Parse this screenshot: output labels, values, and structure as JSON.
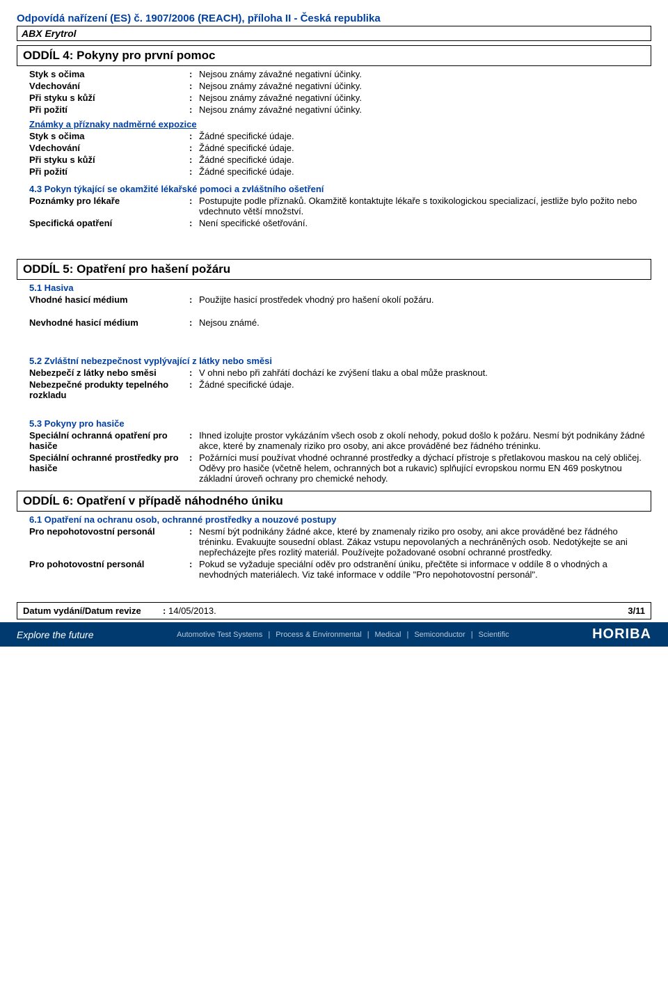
{
  "header": {
    "regulation": "Odpovídá nařízení (ES) č. 1907/2006 (REACH), příloha II - Česká republika",
    "product": "ABX Erytrol"
  },
  "section4": {
    "title": "ODDÍL 4: Pokyny pro první pomoc",
    "rows1": [
      {
        "label": "Styk s očima",
        "value": "Nejsou známy závažné negativní účinky."
      },
      {
        "label": "Vdechování",
        "value": "Nejsou známy závažné negativní účinky."
      },
      {
        "label": "Při styku s kůží",
        "value": "Nejsou známy závažné negativní účinky."
      },
      {
        "label": "Při požití",
        "value": "Nejsou známy závažné negativní účinky."
      }
    ],
    "exposure_heading": "Známky a příznaky nadměrné expozice",
    "rows2": [
      {
        "label": "Styk s očima",
        "value": "Žádné specifické údaje."
      },
      {
        "label": "Vdechování",
        "value": "Žádné specifické údaje."
      },
      {
        "label": "Při styku s kůží",
        "value": "Žádné specifické údaje."
      },
      {
        "label": "Při požití",
        "value": "Žádné specifické údaje."
      }
    ],
    "sub43": "4.3 Pokyn týkající se okamžité lékařské pomoci a zvláštního ošetření",
    "rows3": [
      {
        "label": "Poznámky pro lékaře",
        "value": "Postupujte podle příznaků.  Okamžitě kontaktujte lékaře s toxikologickou specializací, jestliže bylo požito nebo vdechnuto větší množství."
      },
      {
        "label": "Specifická opatření",
        "value": "Není specifické ošetřování."
      }
    ]
  },
  "section5": {
    "title": "ODDÍL 5: Opatření pro hašení požáru",
    "sub51": "5.1 Hasiva",
    "rows1": [
      {
        "label": "Vhodné hasicí médium",
        "value": "Použijte hasicí prostředek vhodný pro hašení okolí požáru."
      }
    ],
    "rows1b": [
      {
        "label": "Nevhodné hasicí médium",
        "value": "Nejsou známé."
      }
    ],
    "sub52": "5.2 Zvláštní nebezpečnost vyplývající z látky nebo směsi",
    "rows2": [
      {
        "label": "Nebezpečí z látky nebo směsi",
        "value": "V ohni nebo při zahřátí dochází ke zvýšení tlaku a obal může prasknout."
      },
      {
        "label": "Nebezpečné produkty tepelného rozkladu",
        "value": "Žádné specifické údaje."
      }
    ],
    "sub53": "5.3 Pokyny pro hasiče",
    "rows3": [
      {
        "label": "Speciální ochranná opatření pro hasiče",
        "value": "Ihned izolujte prostor vykázáním všech osob z okolí nehody, pokud došlo k požáru.  Nesmí být podnikány žádné akce, které by znamenaly riziko pro osoby, ani akce prováděné bez řádného tréninku."
      },
      {
        "label": "Speciální ochranné prostředky pro hasiče",
        "value": "Požárníci musí používat vhodné ochranné prostředky a dýchací přístroje s přetlakovou maskou na celý obličej.  Oděvy pro hasiče (včetně helem, ochranných bot a rukavic) splňující evropskou normu EN 469 poskytnou základní úroveň ochrany pro chemické nehody."
      }
    ]
  },
  "section6": {
    "title": "ODDÍL 6: Opatření v případě náhodného úniku",
    "sub61": "6.1 Opatření na ochranu osob, ochranné prostředky a nouzové postupy",
    "rows1": [
      {
        "label": "Pro nepohotovostní personál",
        "value": "Nesmí být podnikány žádné akce, které by znamenaly riziko pro osoby, ani akce prováděné bez řádného tréninku.  Evakuujte sousední oblast.  Zákaz vstupu nepovolaných a nechráněných osob.  Nedotýkejte se ani nepřecházejte přes rozlitý materiál.  Používejte požadované osobní ochranné prostředky."
      },
      {
        "label": "Pro pohotovostní personál",
        "value": "Pokud se vyžaduje speciální oděv pro odstranění úniku, přečtěte si informace v oddíle 8 o vhodných a nevhodných materiálech.  Viz také informace v oddíle \"Pro nepohotovostní personál\"."
      }
    ]
  },
  "footer": {
    "label": "Datum vydání/Datum revize",
    "date": "14/05/2013.",
    "page": "3/11"
  },
  "banner": {
    "tagline": "Explore the future",
    "items": [
      "Automotive Test Systems",
      "Process & Environmental",
      "Medical",
      "Semiconductor",
      "Scientific"
    ],
    "logo": "HORIBA"
  }
}
